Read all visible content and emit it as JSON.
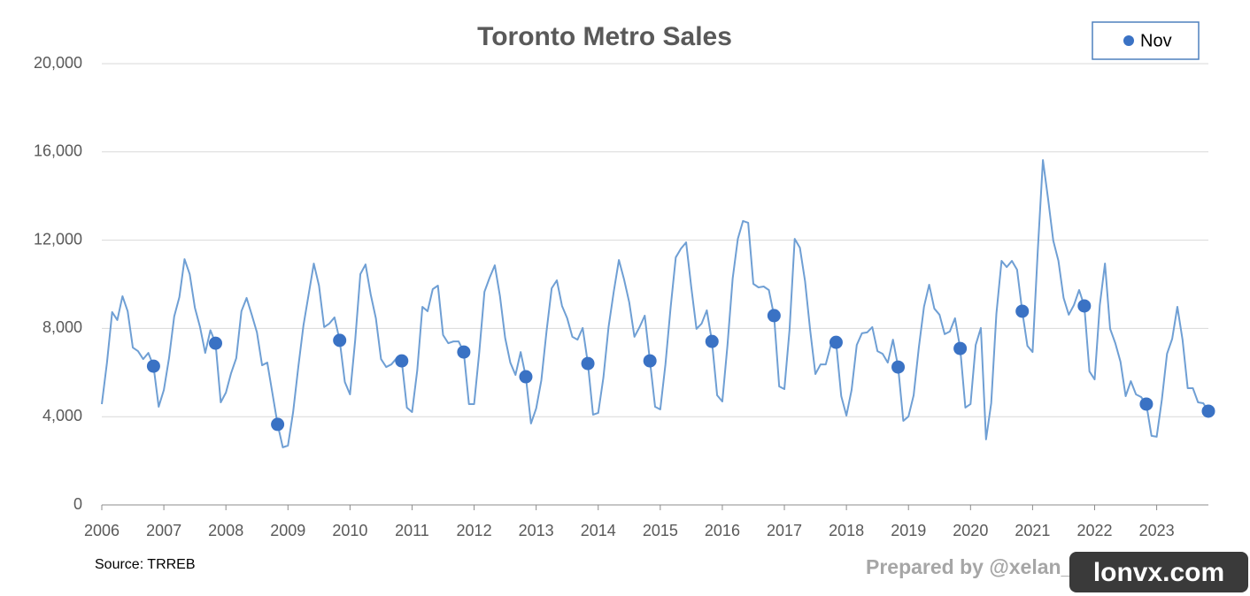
{
  "chart_data": {
    "type": "line",
    "title": "Toronto Metro Sales",
    "source": "Source: TRREB",
    "credit": "Prepared by @xelan_uta for RARE",
    "watermark": "lonvx.com",
    "categories": [
      "2006",
      null,
      null,
      null,
      null,
      null,
      null,
      null,
      null,
      null,
      null,
      null,
      "2007",
      null,
      null,
      null,
      null,
      null,
      null,
      null,
      null,
      null,
      null,
      null,
      "2008",
      null,
      null,
      null,
      null,
      null,
      null,
      null,
      null,
      null,
      null,
      null,
      "2009",
      null,
      null,
      null,
      null,
      null,
      null,
      null,
      null,
      null,
      null,
      null,
      "2010",
      null,
      null,
      null,
      null,
      null,
      null,
      null,
      null,
      null,
      null,
      null,
      "2011",
      null,
      null,
      null,
      null,
      null,
      null,
      null,
      null,
      null,
      null,
      null,
      "2012",
      null,
      null,
      null,
      null,
      null,
      null,
      null,
      null,
      null,
      null,
      null,
      "2013",
      null,
      null,
      null,
      null,
      null,
      null,
      null,
      null,
      null,
      null,
      null,
      "2014",
      null,
      null,
      null,
      null,
      null,
      null,
      null,
      null,
      null,
      null,
      null,
      "2015",
      null,
      null,
      null,
      null,
      null,
      null,
      null,
      null,
      null,
      null,
      null,
      "2016",
      null,
      null,
      null,
      null,
      null,
      null,
      null,
      null,
      null,
      null,
      null,
      "2017",
      null,
      null,
      null,
      null,
      null,
      null,
      null,
      null,
      null,
      null,
      null,
      "2018",
      null,
      null,
      null,
      null,
      null,
      null,
      null,
      null,
      null,
      null,
      null,
      "2019",
      null,
      null,
      null,
      null,
      null,
      null,
      null,
      null,
      null,
      null,
      null,
      "2020",
      null,
      null,
      null,
      null,
      null,
      null,
      null,
      null,
      null,
      null,
      null,
      "2021",
      null,
      null,
      null,
      null,
      null,
      null,
      null,
      null,
      null,
      null,
      null,
      "2022",
      null,
      null,
      null,
      null,
      null,
      null,
      null,
      null,
      null,
      null,
      null,
      "2023",
      null,
      null,
      null,
      null,
      null,
      null,
      null,
      null,
      null,
      null
    ],
    "series": [
      {
        "color": "#6f9fd4",
        "style": "line",
        "values": [
          4570,
          6450,
          8740,
          8380,
          9460,
          8780,
          7130,
          6970,
          6610,
          6890,
          6290,
          4450,
          5210,
          6650,
          8540,
          9420,
          11140,
          10460,
          8940,
          8060,
          6890,
          7920,
          7330,
          4650,
          5090,
          5970,
          6650,
          8780,
          9380,
          8620,
          7820,
          6330,
          6450,
          5050,
          3650,
          2610,
          2690,
          4210,
          6250,
          8140,
          9540,
          10940,
          9940,
          8060,
          8220,
          8500,
          7460,
          5570,
          5010,
          7460,
          10460,
          10900,
          9540,
          8460,
          6610,
          6250,
          6370,
          6650,
          6530,
          4410,
          4210,
          6090,
          8980,
          8780,
          9780,
          9940,
          7700,
          7330,
          7410,
          7410,
          6930,
          4570,
          4570,
          6930,
          9660,
          10300,
          10860,
          9460,
          7570,
          6450,
          5890,
          6930,
          5810,
          3690,
          4370,
          5650,
          7860,
          9820,
          10180,
          9020,
          8460,
          7620,
          7490,
          8020,
          6410,
          4090,
          4170,
          5770,
          8060,
          9660,
          11100,
          10220,
          9180,
          7620,
          8060,
          8580,
          6530,
          4450,
          4330,
          6370,
          8940,
          11220,
          11620,
          11900,
          9860,
          7980,
          8220,
          8820,
          7410,
          4970,
          4690,
          7250,
          10260,
          12060,
          12870,
          12790,
          10020,
          9860,
          9900,
          9740,
          8580,
          5370,
          5250,
          7940,
          12060,
          11660,
          10140,
          7900,
          5930,
          6370,
          6370,
          7250,
          7370,
          4930,
          4050,
          5210,
          7250,
          7780,
          7820,
          8060,
          6970,
          6850,
          6450,
          7490,
          6250,
          3810,
          4010,
          4970,
          7130,
          8980,
          9980,
          8900,
          8620,
          7740,
          7860,
          8460,
          7090,
          4410,
          4570,
          7250,
          8020,
          2970,
          4610,
          8660,
          11060,
          10780,
          11060,
          10660,
          8780,
          7210,
          6930,
          11500,
          15630,
          13870,
          11980,
          11060,
          9380,
          8620,
          9060,
          9740,
          9020,
          6050,
          5690,
          9060,
          10940,
          7980,
          7330,
          6490,
          4930,
          5610,
          5010,
          4890,
          4570,
          3130,
          3090,
          4770,
          6850,
          7530,
          8980,
          7490,
          5290,
          5290,
          4650,
          4610,
          4250
        ]
      },
      {
        "name": "Nov",
        "color": "#3a72c4",
        "style": "marker",
        "values": [
          null,
          null,
          null,
          null,
          null,
          null,
          null,
          null,
          null,
          null,
          6290,
          null,
          null,
          null,
          null,
          null,
          null,
          null,
          null,
          null,
          null,
          null,
          7330,
          null,
          null,
          null,
          null,
          null,
          null,
          null,
          null,
          null,
          null,
          null,
          3650,
          null,
          null,
          null,
          null,
          null,
          null,
          null,
          null,
          null,
          null,
          null,
          7460,
          null,
          null,
          null,
          null,
          null,
          null,
          null,
          null,
          null,
          null,
          null,
          6530,
          null,
          null,
          null,
          null,
          null,
          null,
          null,
          null,
          null,
          null,
          null,
          6930,
          null,
          null,
          null,
          null,
          null,
          null,
          null,
          null,
          null,
          null,
          null,
          5810,
          null,
          null,
          null,
          null,
          null,
          null,
          null,
          null,
          null,
          null,
          null,
          6410,
          null,
          null,
          null,
          null,
          null,
          null,
          null,
          null,
          null,
          null,
          null,
          6530,
          null,
          null,
          null,
          null,
          null,
          null,
          null,
          null,
          null,
          null,
          null,
          7410,
          null,
          null,
          null,
          null,
          null,
          null,
          null,
          null,
          null,
          null,
          null,
          8580,
          null,
          null,
          null,
          null,
          null,
          null,
          null,
          null,
          null,
          null,
          null,
          7370,
          null,
          null,
          null,
          null,
          null,
          null,
          null,
          null,
          null,
          null,
          null,
          6250,
          null,
          null,
          null,
          null,
          null,
          null,
          null,
          null,
          null,
          null,
          null,
          7090,
          null,
          null,
          null,
          null,
          null,
          null,
          null,
          null,
          null,
          null,
          null,
          8780,
          null,
          null,
          null,
          null,
          null,
          null,
          null,
          null,
          null,
          null,
          null,
          9020,
          null,
          null,
          null,
          null,
          null,
          null,
          null,
          null,
          null,
          null,
          null,
          4570,
          null,
          null,
          null,
          null,
          null,
          null,
          null,
          null,
          null,
          null,
          null,
          4250
        ]
      }
    ],
    "ylim": [
      0,
      20000
    ],
    "yticks": [
      0,
      {
        "value": 4000,
        "label": "4,000"
      },
      {
        "value": 8000,
        "label": "8,000"
      },
      {
        "value": 12000,
        "label": "12,000"
      },
      {
        "value": 16000,
        "label": "16,000"
      },
      {
        "value": 20000,
        "label": "20,000"
      }
    ],
    "grid": true,
    "legend": "top-right"
  }
}
